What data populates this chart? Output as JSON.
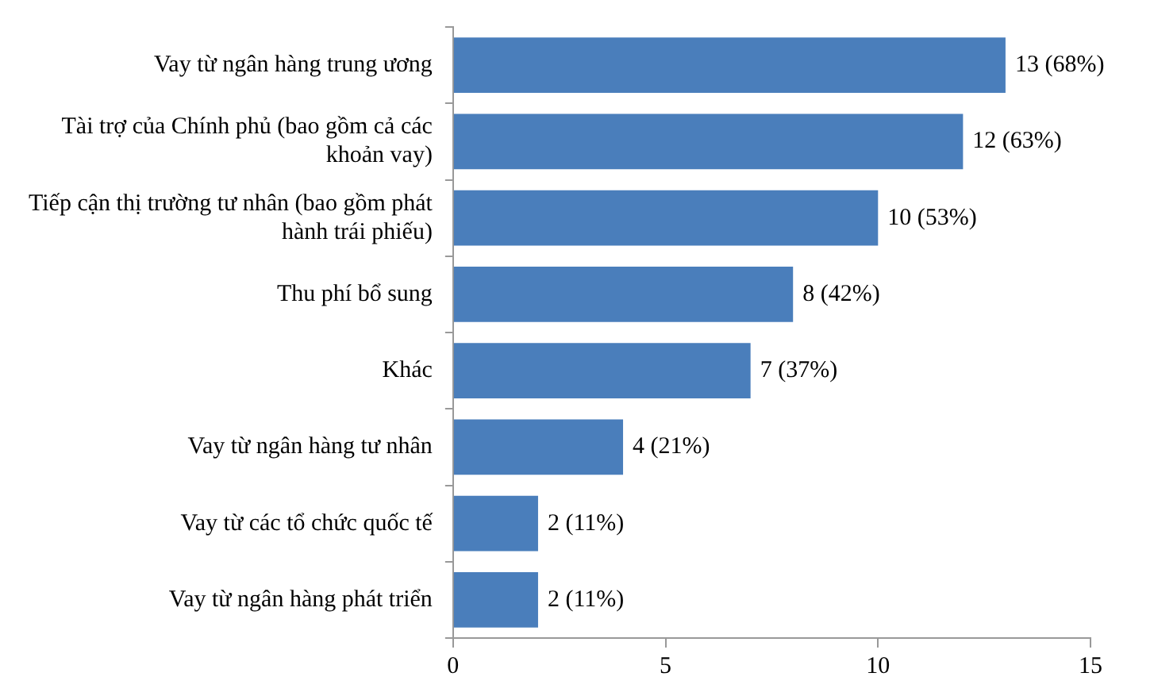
{
  "chart_data": {
    "type": "bar",
    "orientation": "horizontal",
    "categories": [
      "Vay từ ngân hàng trung ương",
      "Tài trợ của Chính phủ (bao gồm cả các khoản vay)",
      "Tiếp cận thị trường tư nhân (bao gồm phát hành trái phiếu)",
      "Thu phí bổ sung",
      "Khác",
      "Vay từ ngân hàng tư nhân",
      "Vay từ các tổ chức quốc tế",
      "Vay từ ngân hàng phát triển"
    ],
    "values": [
      13,
      12,
      10,
      8,
      7,
      4,
      2,
      2
    ],
    "value_labels": [
      "13 (68%)",
      "12 (63%)",
      "10 (53%)",
      "8 (42%)",
      "7 (37%)",
      "4 (21%)",
      "2 (11%)",
      "2 (11%)"
    ],
    "color": "#4a7ebb",
    "xlim": [
      0,
      15
    ],
    "xticks": [
      0,
      5,
      10,
      15
    ],
    "grid": false,
    "legend": false
  }
}
